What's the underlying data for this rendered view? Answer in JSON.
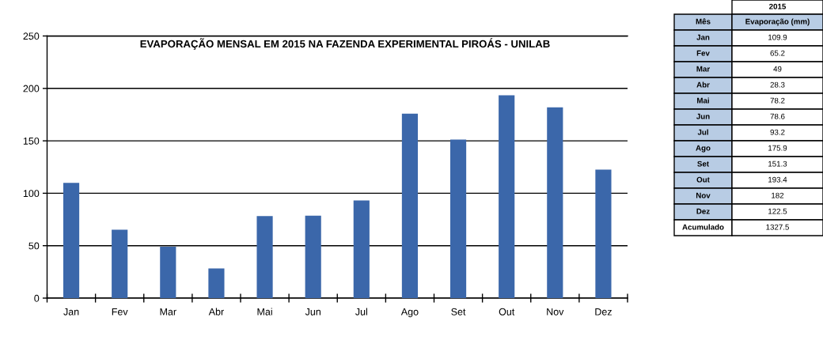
{
  "chart_data": [
    {
      "type": "bar",
      "title": "EVAPORAÇÃO MENSAL EM 2015 NA FAZENDA EXPERIMENTAL PIROÁS - UNILAB",
      "categories": [
        "Jan",
        "Fev",
        "Mar",
        "Abr",
        "Mai",
        "Jun",
        "Jul",
        "Ago",
        "Set",
        "Out",
        "Nov",
        "Dez"
      ],
      "values": [
        109.9,
        65.2,
        49,
        28.3,
        78.2,
        78.6,
        93.2,
        175.9,
        151.3,
        193.4,
        182,
        122.5
      ],
      "color": "#3b67aa",
      "ylim": [
        0,
        250
      ],
      "yticks": [
        0,
        50,
        100,
        150,
        200,
        250
      ],
      "grid": "y"
    },
    {
      "type": "other",
      "annotations": [
        "2015",
        "Mês",
        "Evaporação (mm)",
        "Jan",
        "109.9",
        "Fev",
        "65.2",
        "Mar",
        "49",
        "Abr",
        "28.3",
        "Mai",
        "78.2",
        "Jun",
        "78.6",
        "Jul",
        "93.2",
        "Ago",
        "175.9",
        "Set",
        "151.3",
        "Out",
        "193.4",
        "Nov",
        "182",
        "Dez",
        "122.5",
        "Acumulado",
        "1327.5"
      ]
    }
  ]
}
